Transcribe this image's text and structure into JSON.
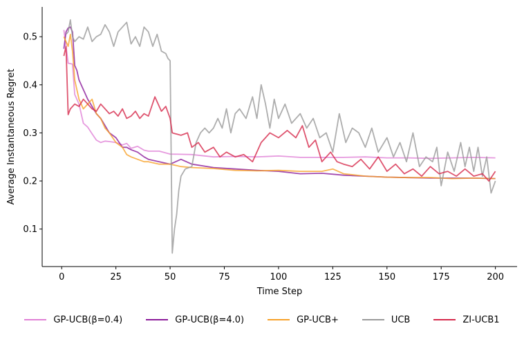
{
  "chart_data": {
    "type": "line",
    "title": "",
    "xlabel": "Time Step",
    "ylabel": "Average Instantaneous Regret",
    "xlim": [
      -9,
      210
    ],
    "ylim": [
      0.022,
      0.562
    ],
    "xticks": [
      0,
      25,
      50,
      75,
      100,
      125,
      150,
      175,
      200
    ],
    "yticks": [
      0.1,
      0.2,
      0.3,
      0.4,
      0.5
    ],
    "ytick_labels": [
      "0.1",
      "0.2",
      "0.3",
      "0.4",
      "0.5"
    ],
    "grid": false,
    "legend_position": "bottom-center",
    "series": [
      {
        "name": "GP-UCB(β=0.4)",
        "color": "#e07fd6",
        "points": [
          [
            1,
            0.514
          ],
          [
            3,
            0.445
          ],
          [
            5,
            0.443
          ],
          [
            6,
            0.38
          ],
          [
            8,
            0.36
          ],
          [
            10,
            0.32
          ],
          [
            12,
            0.312
          ],
          [
            14,
            0.298
          ],
          [
            16,
            0.285
          ],
          [
            18,
            0.28
          ],
          [
            20,
            0.283
          ],
          [
            22,
            0.282
          ],
          [
            25,
            0.28
          ],
          [
            28,
            0.275
          ],
          [
            30,
            0.278
          ],
          [
            32,
            0.268
          ],
          [
            35,
            0.272
          ],
          [
            38,
            0.264
          ],
          [
            40,
            0.262
          ],
          [
            45,
            0.262
          ],
          [
            50,
            0.256
          ],
          [
            60,
            0.255
          ],
          [
            70,
            0.25
          ],
          [
            80,
            0.251
          ],
          [
            90,
            0.25
          ],
          [
            100,
            0.252
          ],
          [
            110,
            0.249
          ],
          [
            120,
            0.249
          ],
          [
            130,
            0.249
          ],
          [
            140,
            0.25
          ],
          [
            150,
            0.248
          ],
          [
            160,
            0.248
          ],
          [
            170,
            0.247
          ],
          [
            180,
            0.248
          ],
          [
            190,
            0.249
          ],
          [
            200,
            0.248
          ]
        ]
      },
      {
        "name": "GP-UCB(β=4.0)",
        "color": "#8b1a9a",
        "points": [
          [
            1,
            0.475
          ],
          [
            2,
            0.51
          ],
          [
            3,
            0.518
          ],
          [
            4,
            0.52
          ],
          [
            5,
            0.51
          ],
          [
            6,
            0.44
          ],
          [
            7,
            0.43
          ],
          [
            8,
            0.41
          ],
          [
            10,
            0.39
          ],
          [
            12,
            0.37
          ],
          [
            14,
            0.355
          ],
          [
            16,
            0.34
          ],
          [
            18,
            0.33
          ],
          [
            20,
            0.315
          ],
          [
            22,
            0.3
          ],
          [
            25,
            0.29
          ],
          [
            28,
            0.27
          ],
          [
            30,
            0.27
          ],
          [
            32,
            0.265
          ],
          [
            35,
            0.26
          ],
          [
            38,
            0.25
          ],
          [
            40,
            0.245
          ],
          [
            45,
            0.24
          ],
          [
            50,
            0.235
          ],
          [
            55,
            0.245
          ],
          [
            60,
            0.235
          ],
          [
            70,
            0.228
          ],
          [
            80,
            0.225
          ],
          [
            90,
            0.222
          ],
          [
            100,
            0.22
          ],
          [
            110,
            0.215
          ],
          [
            120,
            0.216
          ],
          [
            130,
            0.212
          ],
          [
            140,
            0.21
          ],
          [
            150,
            0.208
          ],
          [
            160,
            0.207
          ],
          [
            170,
            0.206
          ],
          [
            180,
            0.206
          ],
          [
            190,
            0.206
          ],
          [
            200,
            0.205
          ]
        ]
      },
      {
        "name": "GP-UCB+",
        "color": "#f7a128",
        "points": [
          [
            1,
            0.5
          ],
          [
            2,
            0.49
          ],
          [
            3,
            0.48
          ],
          [
            4,
            0.505
          ],
          [
            5,
            0.47
          ],
          [
            6,
            0.41
          ],
          [
            8,
            0.37
          ],
          [
            10,
            0.35
          ],
          [
            12,
            0.36
          ],
          [
            14,
            0.37
          ],
          [
            16,
            0.34
          ],
          [
            18,
            0.33
          ],
          [
            20,
            0.31
          ],
          [
            22,
            0.3
          ],
          [
            25,
            0.28
          ],
          [
            28,
            0.27
          ],
          [
            30,
            0.255
          ],
          [
            32,
            0.25
          ],
          [
            35,
            0.245
          ],
          [
            38,
            0.24
          ],
          [
            40,
            0.24
          ],
          [
            45,
            0.235
          ],
          [
            50,
            0.235
          ],
          [
            55,
            0.23
          ],
          [
            60,
            0.228
          ],
          [
            70,
            0.226
          ],
          [
            80,
            0.222
          ],
          [
            90,
            0.221
          ],
          [
            100,
            0.222
          ],
          [
            110,
            0.22
          ],
          [
            120,
            0.22
          ],
          [
            125,
            0.225
          ],
          [
            130,
            0.215
          ],
          [
            140,
            0.21
          ],
          [
            150,
            0.208
          ],
          [
            160,
            0.207
          ],
          [
            170,
            0.207
          ],
          [
            180,
            0.205
          ],
          [
            190,
            0.206
          ],
          [
            200,
            0.205
          ]
        ]
      },
      {
        "name": "UCB",
        "color": "#999999",
        "points": [
          [
            2,
            0.505
          ],
          [
            3,
            0.51
          ],
          [
            4,
            0.535
          ],
          [
            5,
            0.5
          ],
          [
            6,
            0.49
          ],
          [
            8,
            0.5
          ],
          [
            10,
            0.495
          ],
          [
            12,
            0.52
          ],
          [
            14,
            0.49
          ],
          [
            16,
            0.5
          ],
          [
            18,
            0.505
          ],
          [
            20,
            0.525
          ],
          [
            22,
            0.51
          ],
          [
            24,
            0.48
          ],
          [
            26,
            0.51
          ],
          [
            28,
            0.52
          ],
          [
            30,
            0.53
          ],
          [
            32,
            0.485
          ],
          [
            34,
            0.5
          ],
          [
            36,
            0.48
          ],
          [
            38,
            0.52
          ],
          [
            40,
            0.51
          ],
          [
            42,
            0.48
          ],
          [
            44,
            0.505
          ],
          [
            46,
            0.47
          ],
          [
            48,
            0.465
          ],
          [
            49,
            0.455
          ],
          [
            50,
            0.45
          ],
          [
            51,
            0.05
          ],
          [
            52,
            0.1
          ],
          [
            53,
            0.13
          ],
          [
            54,
            0.18
          ],
          [
            55,
            0.21
          ],
          [
            57,
            0.225
          ],
          [
            60,
            0.23
          ],
          [
            62,
            0.28
          ],
          [
            64,
            0.3
          ],
          [
            66,
            0.31
          ],
          [
            68,
            0.3
          ],
          [
            70,
            0.31
          ],
          [
            72,
            0.33
          ],
          [
            74,
            0.31
          ],
          [
            76,
            0.35
          ],
          [
            78,
            0.3
          ],
          [
            80,
            0.34
          ],
          [
            82,
            0.35
          ],
          [
            85,
            0.33
          ],
          [
            88,
            0.375
          ],
          [
            90,
            0.33
          ],
          [
            92,
            0.4
          ],
          [
            94,
            0.36
          ],
          [
            96,
            0.31
          ],
          [
            98,
            0.37
          ],
          [
            100,
            0.33
          ],
          [
            103,
            0.36
          ],
          [
            106,
            0.32
          ],
          [
            110,
            0.34
          ],
          [
            113,
            0.31
          ],
          [
            116,
            0.33
          ],
          [
            119,
            0.29
          ],
          [
            122,
            0.3
          ],
          [
            125,
            0.26
          ],
          [
            128,
            0.34
          ],
          [
            131,
            0.28
          ],
          [
            134,
            0.31
          ],
          [
            137,
            0.3
          ],
          [
            140,
            0.27
          ],
          [
            143,
            0.31
          ],
          [
            146,
            0.26
          ],
          [
            150,
            0.29
          ],
          [
            153,
            0.25
          ],
          [
            156,
            0.28
          ],
          [
            159,
            0.24
          ],
          [
            162,
            0.3
          ],
          [
            165,
            0.23
          ],
          [
            168,
            0.25
          ],
          [
            171,
            0.24
          ],
          [
            173,
            0.27
          ],
          [
            175,
            0.19
          ],
          [
            178,
            0.26
          ],
          [
            181,
            0.22
          ],
          [
            184,
            0.28
          ],
          [
            186,
            0.23
          ],
          [
            188,
            0.27
          ],
          [
            190,
            0.22
          ],
          [
            192,
            0.27
          ],
          [
            194,
            0.21
          ],
          [
            196,
            0.25
          ],
          [
            198,
            0.175
          ],
          [
            200,
            0.2
          ]
        ]
      },
      {
        "name": "ZI-UCB1",
        "color": "#d6284a",
        "points": [
          [
            1,
            0.46
          ],
          [
            2,
            0.48
          ],
          [
            3,
            0.338
          ],
          [
            4,
            0.35
          ],
          [
            6,
            0.36
          ],
          [
            8,
            0.355
          ],
          [
            10,
            0.37
          ],
          [
            12,
            0.36
          ],
          [
            14,
            0.35
          ],
          [
            16,
            0.345
          ],
          [
            18,
            0.36
          ],
          [
            20,
            0.35
          ],
          [
            22,
            0.34
          ],
          [
            24,
            0.345
          ],
          [
            26,
            0.335
          ],
          [
            28,
            0.35
          ],
          [
            30,
            0.33
          ],
          [
            32,
            0.335
          ],
          [
            34,
            0.345
          ],
          [
            36,
            0.33
          ],
          [
            38,
            0.34
          ],
          [
            40,
            0.335
          ],
          [
            43,
            0.375
          ],
          [
            46,
            0.345
          ],
          [
            48,
            0.355
          ],
          [
            50,
            0.33
          ],
          [
            51,
            0.3
          ],
          [
            55,
            0.295
          ],
          [
            58,
            0.3
          ],
          [
            60,
            0.27
          ],
          [
            63,
            0.28
          ],
          [
            66,
            0.26
          ],
          [
            70,
            0.27
          ],
          [
            73,
            0.25
          ],
          [
            76,
            0.26
          ],
          [
            80,
            0.25
          ],
          [
            84,
            0.255
          ],
          [
            88,
            0.24
          ],
          [
            92,
            0.28
          ],
          [
            96,
            0.3
          ],
          [
            100,
            0.29
          ],
          [
            104,
            0.305
          ],
          [
            108,
            0.29
          ],
          [
            111,
            0.315
          ],
          [
            114,
            0.27
          ],
          [
            117,
            0.285
          ],
          [
            120,
            0.24
          ],
          [
            124,
            0.26
          ],
          [
            127,
            0.24
          ],
          [
            130,
            0.235
          ],
          [
            134,
            0.23
          ],
          [
            138,
            0.245
          ],
          [
            142,
            0.225
          ],
          [
            146,
            0.25
          ],
          [
            150,
            0.22
          ],
          [
            154,
            0.235
          ],
          [
            158,
            0.215
          ],
          [
            162,
            0.225
          ],
          [
            166,
            0.21
          ],
          [
            170,
            0.23
          ],
          [
            174,
            0.215
          ],
          [
            178,
            0.22
          ],
          [
            182,
            0.21
          ],
          [
            186,
            0.225
          ],
          [
            190,
            0.21
          ],
          [
            194,
            0.215
          ],
          [
            197,
            0.2
          ],
          [
            200,
            0.22
          ]
        ]
      }
    ]
  }
}
